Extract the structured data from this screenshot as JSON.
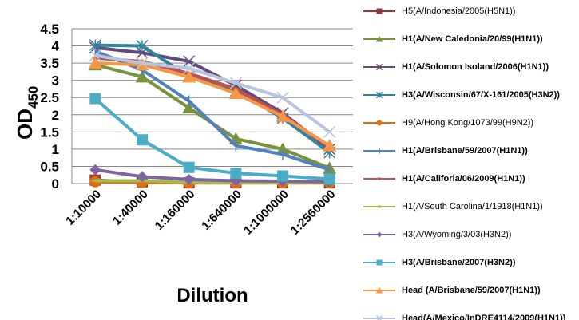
{
  "chart_data": {
    "type": "line",
    "title": "",
    "xlabel": "Dilution",
    "ylabel": "OD",
    "ylabel_sub": "450",
    "ylim": [
      0,
      4.5
    ],
    "yticks": [
      "0",
      "0.5",
      "1",
      "1.5",
      "2",
      "2.5",
      "3",
      "3.5",
      "4",
      "4.5"
    ],
    "categories": [
      "1:10000",
      "1:40000",
      "1:160000",
      "1:640000",
      "1:1000000",
      "1:2560000"
    ],
    "grid": true,
    "legend_position": "right",
    "series": [
      {
        "name": "H5(A/Indonesia/2005(H5N1))",
        "color": "#953735",
        "marker": "square",
        "bold": false,
        "values": [
          0.1,
          0.05,
          0.02,
          0.02,
          0.02,
          0.02
        ]
      },
      {
        "name": "H1(A/New Caledonia/20/99(H1N1))",
        "color": "#77933C",
        "marker": "triangle",
        "bold": true,
        "values": [
          3.45,
          3.1,
          2.2,
          1.3,
          1.0,
          0.45
        ]
      },
      {
        "name": "H1(A/Solomon Isoland/2006(H1N1))",
        "color": "#604A7B",
        "marker": "x",
        "bold": true,
        "values": [
          3.95,
          3.8,
          3.55,
          2.85,
          2.05,
          1.0
        ]
      },
      {
        "name": "H3(A/Wisconsin/67/X-161/2005(H3N2))",
        "color": "#31859C",
        "marker": "star",
        "bold": true,
        "values": [
          4.02,
          4.0,
          3.1,
          2.7,
          1.9,
          0.9
        ]
      },
      {
        "name": "H9(A/Hong Kong/1073/99(H9N2))",
        "color": "#E46C0A",
        "marker": "circle",
        "bold": false,
        "values": [
          0.05,
          0.03,
          0.02,
          0.02,
          0.02,
          0.02
        ]
      },
      {
        "name": "H1(A/Brisbane/59/2007(H1N1))",
        "color": "#4F81BD",
        "marker": "plus",
        "bold": true,
        "values": [
          3.85,
          3.3,
          2.4,
          1.1,
          0.85,
          0.4
        ]
      },
      {
        "name": "H1(A/Califoria/06/2009(H1N1))",
        "color": "#C0504D",
        "marker": "dash",
        "bold": true,
        "values": [
          3.65,
          3.55,
          3.2,
          2.75,
          2.0,
          1.05
        ]
      },
      {
        "name": "H1(A/South Carolina/1/1918(H1N1))",
        "color": "#9BBB59",
        "marker": "dash",
        "bold": false,
        "values": [
          0.08,
          0.08,
          0.04,
          0.03,
          0.03,
          0.03
        ]
      },
      {
        "name": "H3(A/Wyoming/3/03(H3N2))",
        "color": "#8064A2",
        "marker": "diamond",
        "bold": false,
        "values": [
          0.4,
          0.2,
          0.12,
          0.08,
          0.07,
          0.05
        ]
      },
      {
        "name": "H3(A/Brisbane/2007(H3N2))",
        "color": "#4BACC6",
        "marker": "square",
        "bold": true,
        "values": [
          2.47,
          1.27,
          0.47,
          0.3,
          0.22,
          0.13
        ]
      },
      {
        "name": "Head (A/Brisbane/59/2007(H1N1))",
        "color": "#F79646",
        "marker": "triangle",
        "bold": true,
        "values": [
          3.5,
          3.45,
          3.1,
          2.62,
          1.95,
          1.1
        ]
      },
      {
        "name": "Head(A/Mexico/InDRE4114/2009(H1N1))",
        "color": "#B9C4DE",
        "marker": "x",
        "bold": true,
        "values": [
          3.72,
          3.5,
          3.35,
          2.92,
          2.5,
          1.5
        ]
      }
    ]
  }
}
